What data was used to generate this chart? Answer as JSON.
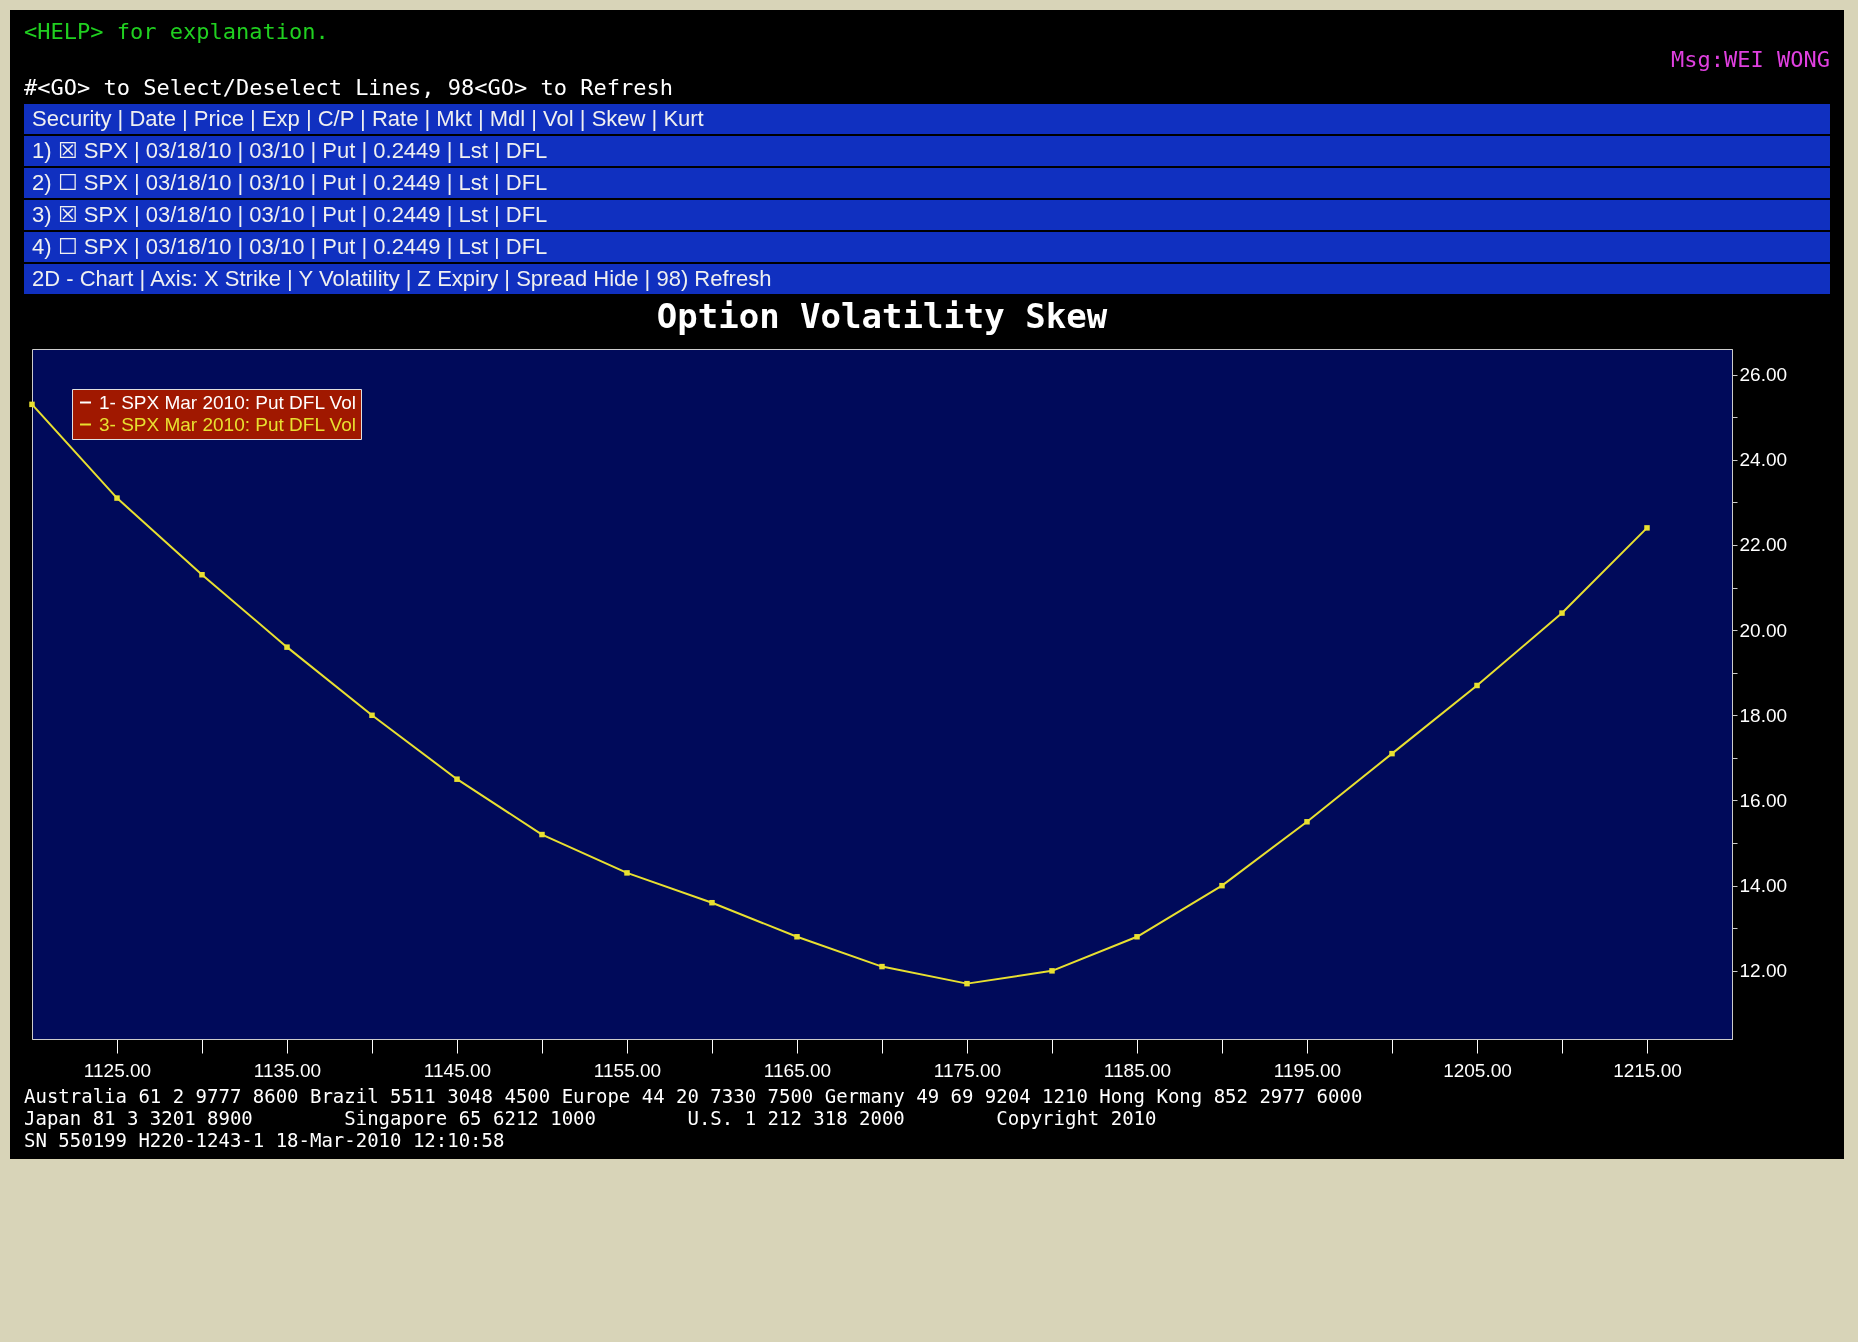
{
  "chart_data": {
    "type": "line",
    "title": "Option Volatility Skew",
    "annotations": [
      "<HELP> for explanation.",
      "Msg:WEI WONG",
      "#<GO> to Select/Deselect Lines, 98<GO> to Refresh",
      "Security | Date | Price | Exp | C/P | Rate | Mkt | Mdl | Vol | Skew | Kurt",
      "1) ☒ SPX | 03/18/10 | 03/10 | Put | 0.2449 | Lst | DFL",
      "2) ☐ SPX | 03/18/10 | 03/10 | Put | 0.2449 | Lst | DFL",
      "3) ☒ SPX | 03/18/10 | 03/10 | Put | 0.2449 | Lst | DFL",
      "4) ☐ SPX | 03/18/10 | 03/10 | Put | 0.2449 | Lst | DFL",
      "2D - Chart | Axis: X Strike | Y Volatility | Z Expiry | Spread Hide | 98) Refresh",
      "Australia 61 2 9777 8600 Brazil 5511 3048 4500 Europe 44 20 7330 7500 Germany 49 69 9204 1210 Hong Kong 852 2977 6000",
      "Japan 81 3 3201 8900        Singapore 65 6212 1000        U.S. 1 212 318 2000        Copyright 2010",
      "SN 550199 H220-1243-1 18-Mar-2010 12:10:58"
    ],
    "x": [
      1120,
      1125,
      1130,
      1135,
      1140,
      1145,
      1150,
      1155,
      1160,
      1165,
      1170,
      1175,
      1180,
      1185,
      1190,
      1195,
      1200,
      1205,
      1210,
      1215
    ],
    "series": [
      {
        "name": "1- SPX Mar 2010: Put DFL Vol",
        "color": "#ffffff",
        "values": [
          null,
          null,
          null,
          null,
          null,
          null,
          null,
          null,
          null,
          null,
          null,
          null,
          null,
          null,
          null,
          null,
          null,
          null,
          null,
          null
        ]
      },
      {
        "name": "3- SPX Mar 2010: Put DFL Vol",
        "color": "#e8e030",
        "values": [
          25.3,
          23.1,
          21.3,
          19.6,
          18.0,
          16.5,
          15.2,
          14.3,
          13.6,
          12.8,
          12.1,
          11.7,
          12.0,
          12.8,
          14.0,
          15.5,
          17.1,
          18.7,
          20.4,
          22.4
        ]
      }
    ],
    "xlim": [
      1120,
      1220
    ],
    "xticks": [
      {
        "value": 1125,
        "label": "1125.00"
      },
      {
        "value": 1130,
        "label": null
      },
      {
        "value": 1135,
        "label": "1135.00"
      },
      {
        "value": 1140,
        "label": null
      },
      {
        "value": 1145,
        "label": "1145.00"
      },
      {
        "value": 1150,
        "label": null
      },
      {
        "value": 1155,
        "label": "1155.00"
      },
      {
        "value": 1160,
        "label": null
      },
      {
        "value": 1165,
        "label": "1165.00"
      },
      {
        "value": 1170,
        "label": null
      },
      {
        "value": 1175,
        "label": "1175.00"
      },
      {
        "value": 1180,
        "label": null
      },
      {
        "value": 1185,
        "label": "1185.00"
      },
      {
        "value": 1190,
        "label": null
      },
      {
        "value": 1195,
        "label": "1195.00"
      },
      {
        "value": 1200,
        "label": null
      },
      {
        "value": 1205,
        "label": "1205.00"
      },
      {
        "value": 1210,
        "label": null
      },
      {
        "value": 1215,
        "label": "1215.00"
      }
    ],
    "ylim": [
      10.4,
      26.6
    ],
    "yticks": [
      {
        "value": 12,
        "label": "12.00"
      },
      {
        "value": 13,
        "label": null
      },
      {
        "value": 14,
        "label": "14.00"
      },
      {
        "value": 15,
        "label": null
      },
      {
        "value": 16,
        "label": "16.00"
      },
      {
        "value": 17,
        "label": null
      },
      {
        "value": 18,
        "label": "18.00"
      },
      {
        "value": 19,
        "label": null
      },
      {
        "value": 20,
        "label": "20.00"
      },
      {
        "value": 21,
        "label": null
      },
      {
        "value": 22,
        "label": "22.00"
      },
      {
        "value": 23,
        "label": null
      },
      {
        "value": 24,
        "label": "24.00"
      },
      {
        "value": 25,
        "label": null
      },
      {
        "value": 26,
        "label": "26.00"
      }
    ],
    "legend": "top left",
    "marker": "square",
    "line_style": "solid"
  }
}
